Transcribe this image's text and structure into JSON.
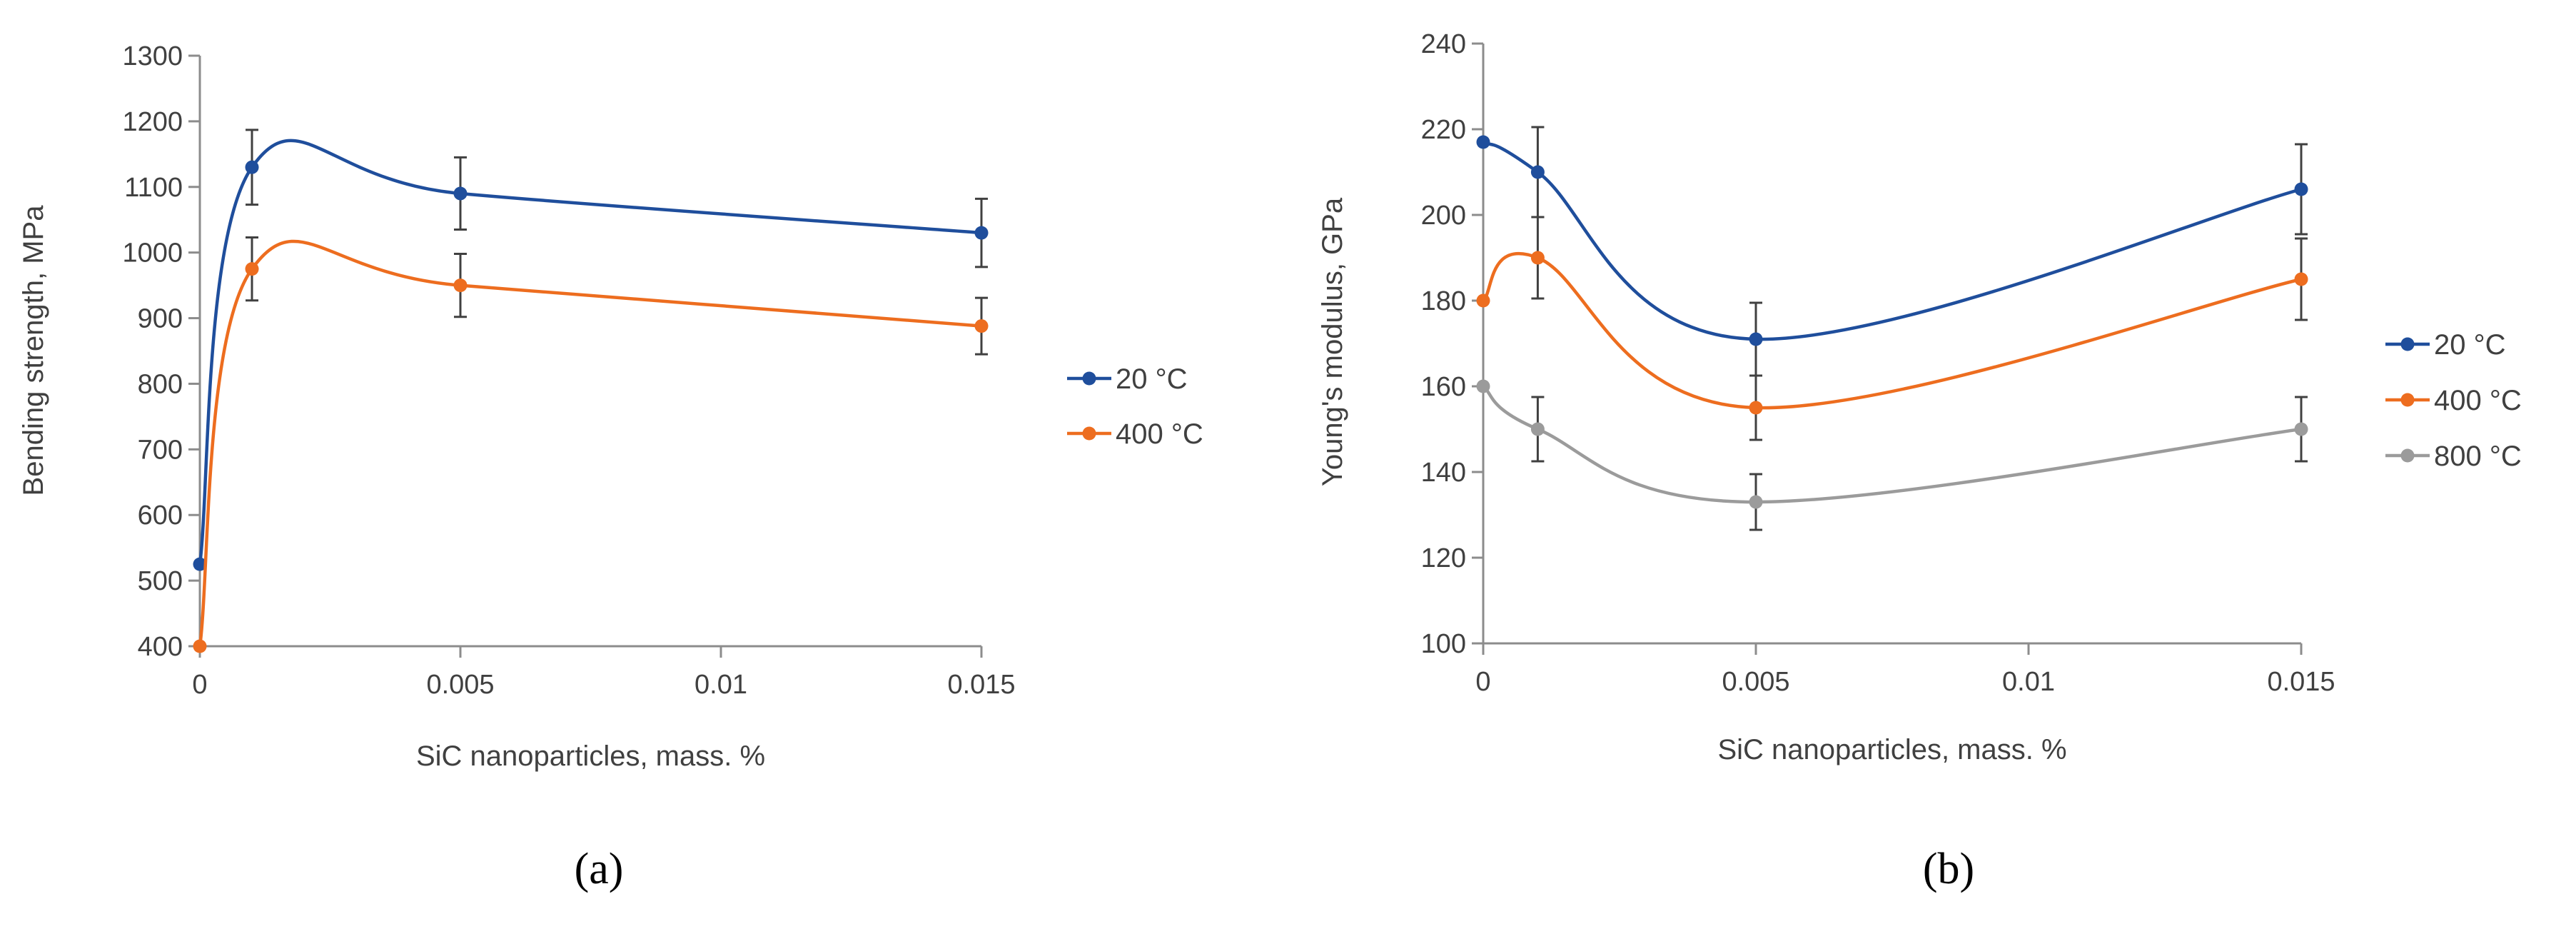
{
  "chart_data": [
    {
      "id": "a",
      "type": "line",
      "panel_label": "(a)",
      "title": "",
      "xlabel": "SiC nanoparticles, mass. %",
      "ylabel": "Bending strength, MPa",
      "xlim": [
        0,
        0.015
      ],
      "ylim": [
        400,
        1300
      ],
      "xticks": [
        0,
        0.005,
        0.01,
        0.015
      ],
      "xtick_labels": [
        "0",
        "0.005",
        "0.01",
        "0.015"
      ],
      "yticks": [
        400,
        500,
        600,
        700,
        800,
        900,
        1000,
        1100,
        1200,
        1300
      ],
      "ytick_labels": [
        "400",
        "500",
        "600",
        "700",
        "800",
        "900",
        "1000",
        "1100",
        "1200",
        "1300"
      ],
      "grid": false,
      "legend_position": "right",
      "x": [
        0,
        0.001,
        0.005,
        0.015
      ],
      "series": [
        {
          "name": "20 °C",
          "color": "#1f4e9c",
          "values": [
            525,
            1130,
            1090,
            1030
          ],
          "errors": [
            0,
            57,
            55,
            52
          ]
        },
        {
          "name": "400 °C",
          "color": "#ed6d1f",
          "values": [
            400,
            975,
            950,
            888
          ],
          "errors": [
            0,
            48,
            48,
            43
          ]
        }
      ]
    },
    {
      "id": "b",
      "type": "line",
      "panel_label": "(b)",
      "title": "",
      "xlabel": "SiC nanoparticles, mass. %",
      "ylabel": "Young's modulus, GPa",
      "xlim": [
        0,
        0.015
      ],
      "ylim": [
        100,
        240
      ],
      "xticks": [
        0,
        0.005,
        0.01,
        0.015
      ],
      "xtick_labels": [
        "0",
        "0.005",
        "0.01",
        "0.015"
      ],
      "yticks": [
        100,
        120,
        140,
        160,
        180,
        200,
        220,
        240
      ],
      "ytick_labels": [
        "100",
        "120",
        "140",
        "160",
        "180",
        "200",
        "220",
        "240"
      ],
      "grid": false,
      "legend_position": "right",
      "x": [
        0,
        0.001,
        0.005,
        0.015
      ],
      "series": [
        {
          "name": "20 °C",
          "color": "#1f4e9c",
          "values": [
            217,
            210,
            171,
            206
          ],
          "errors": [
            0,
            10.5,
            8.5,
            10.5
          ]
        },
        {
          "name": "400 °C",
          "color": "#ed6d1f",
          "values": [
            180,
            190,
            155,
            185
          ],
          "errors": [
            0,
            9.5,
            7.5,
            9.5
          ]
        },
        {
          "name": "800 °C",
          "color": "#9b9b9b",
          "values": [
            160,
            150,
            133,
            150
          ],
          "errors": [
            0,
            7.5,
            6.5,
            7.5
          ]
        }
      ]
    }
  ]
}
